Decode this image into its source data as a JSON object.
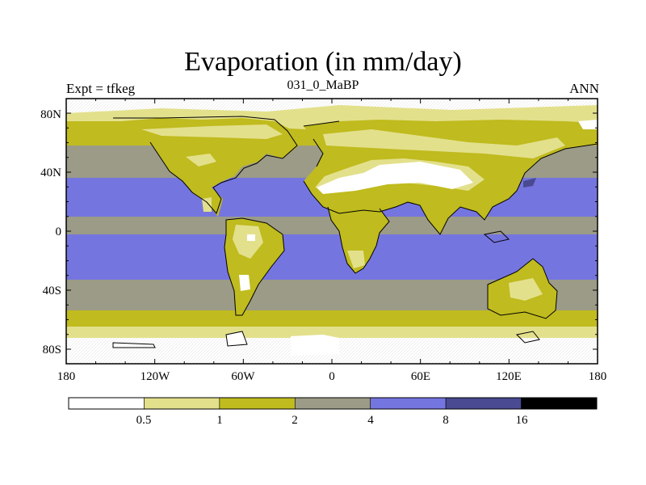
{
  "title": "Evaporation (in mm/day)",
  "subtitle_left": "Expt = tfkeg",
  "subtitle_center": "031_0_MaBP",
  "subtitle_right": "ANN",
  "lat_labels": [
    "80N",
    "40N",
    "0",
    "40S",
    "80S"
  ],
  "lon_labels": [
    "180",
    "120W",
    "60W",
    "0",
    "60E",
    "120E",
    "180"
  ],
  "colorbar": {
    "colors": [
      "#ffffff",
      "#e3e08c",
      "#c0bb1e",
      "#9b9b88",
      "#7575e0",
      "#4a4a92",
      "#000000"
    ],
    "labels": [
      "0.5",
      "1",
      "2",
      "4",
      "8",
      "16"
    ]
  },
  "palette": {
    "lt05": "#ffffff",
    "b05_1": "#e3e08c",
    "b1_2": "#c0bb1e",
    "b2_4": "#9b9b88",
    "b4_8": "#7575e0",
    "b8_16": "#4a4a92",
    "gt16": "#000000"
  }
}
